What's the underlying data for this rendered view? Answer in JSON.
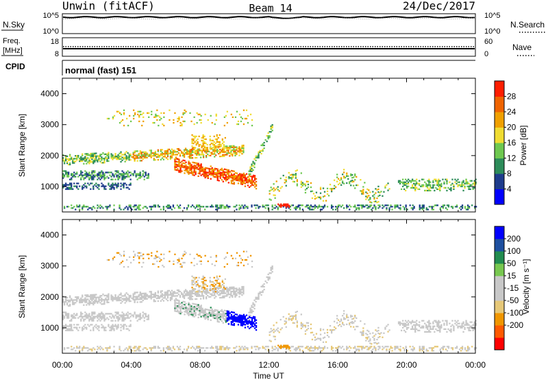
{
  "header": {
    "station": "Unwin (fitACF)",
    "beam": "Beam 14",
    "date": "24/Dec/2017"
  },
  "sky_panel": {
    "left_label": "N.Sky",
    "left_ticks": [
      "10^5",
      "10^0"
    ],
    "right_ticks": [
      "10^5",
      "10^0"
    ],
    "right_label": "N.Search"
  },
  "freq_panel": {
    "left_label_1": "Freq.",
    "left_label_2": "[MHz]",
    "left_ticks": [
      "18",
      "8"
    ],
    "right_ticks": [
      "60",
      "0"
    ],
    "right_label": "Nave"
  },
  "cpid": {
    "label": "CPID",
    "value": "normal (fast) 151"
  },
  "colors": {
    "power_scale": [
      "#0000ff",
      "#1e3c8c",
      "#2d8c5a",
      "#6ec850",
      "#f0dc32",
      "#f0a000",
      "#f06400",
      "#ff1e00"
    ],
    "velocity_scale": [
      "#ff0000",
      "#ff5a00",
      "#f09600",
      "#e6c878",
      "#c8c8c8",
      "#c8c8c8",
      "#78c850",
      "#228c50",
      "#1e50a0",
      "#0000ff"
    ]
  },
  "chart_data": [
    {
      "type": "heatmap",
      "name": "power",
      "ylabel": "Slant Range [km]",
      "ylim": [
        180,
        4500
      ],
      "yticks": [
        "1000",
        "2000",
        "3000",
        "4000"
      ],
      "xticks": [
        "00:00",
        "04:00",
        "08:00",
        "12:00",
        "16:00",
        "20:00",
        "00:00"
      ],
      "xlim_hours": [
        0,
        24
      ],
      "colorbar": {
        "label": "Power [dB]",
        "ticks": [
          "4",
          "8",
          "12",
          "16",
          "20",
          "24",
          "28"
        ],
        "range": [
          0,
          32
        ]
      }
    },
    {
      "type": "heatmap",
      "name": "velocity",
      "ylabel": "Slant Range [km]",
      "ylim": [
        180,
        4500
      ],
      "yticks": [
        "1000",
        "2000",
        "3000",
        "4000"
      ],
      "xticks": [
        "00:00",
        "04:00",
        "08:00",
        "12:00",
        "16:00",
        "20:00",
        "00:00"
      ],
      "xlabel": "Time UT",
      "colorbar": {
        "label": "Velocity [m s⁻¹]",
        "ticks": [
          "200",
          "100",
          "50",
          "15",
          "-15",
          "-50",
          "-100",
          "-200"
        ]
      }
    }
  ]
}
